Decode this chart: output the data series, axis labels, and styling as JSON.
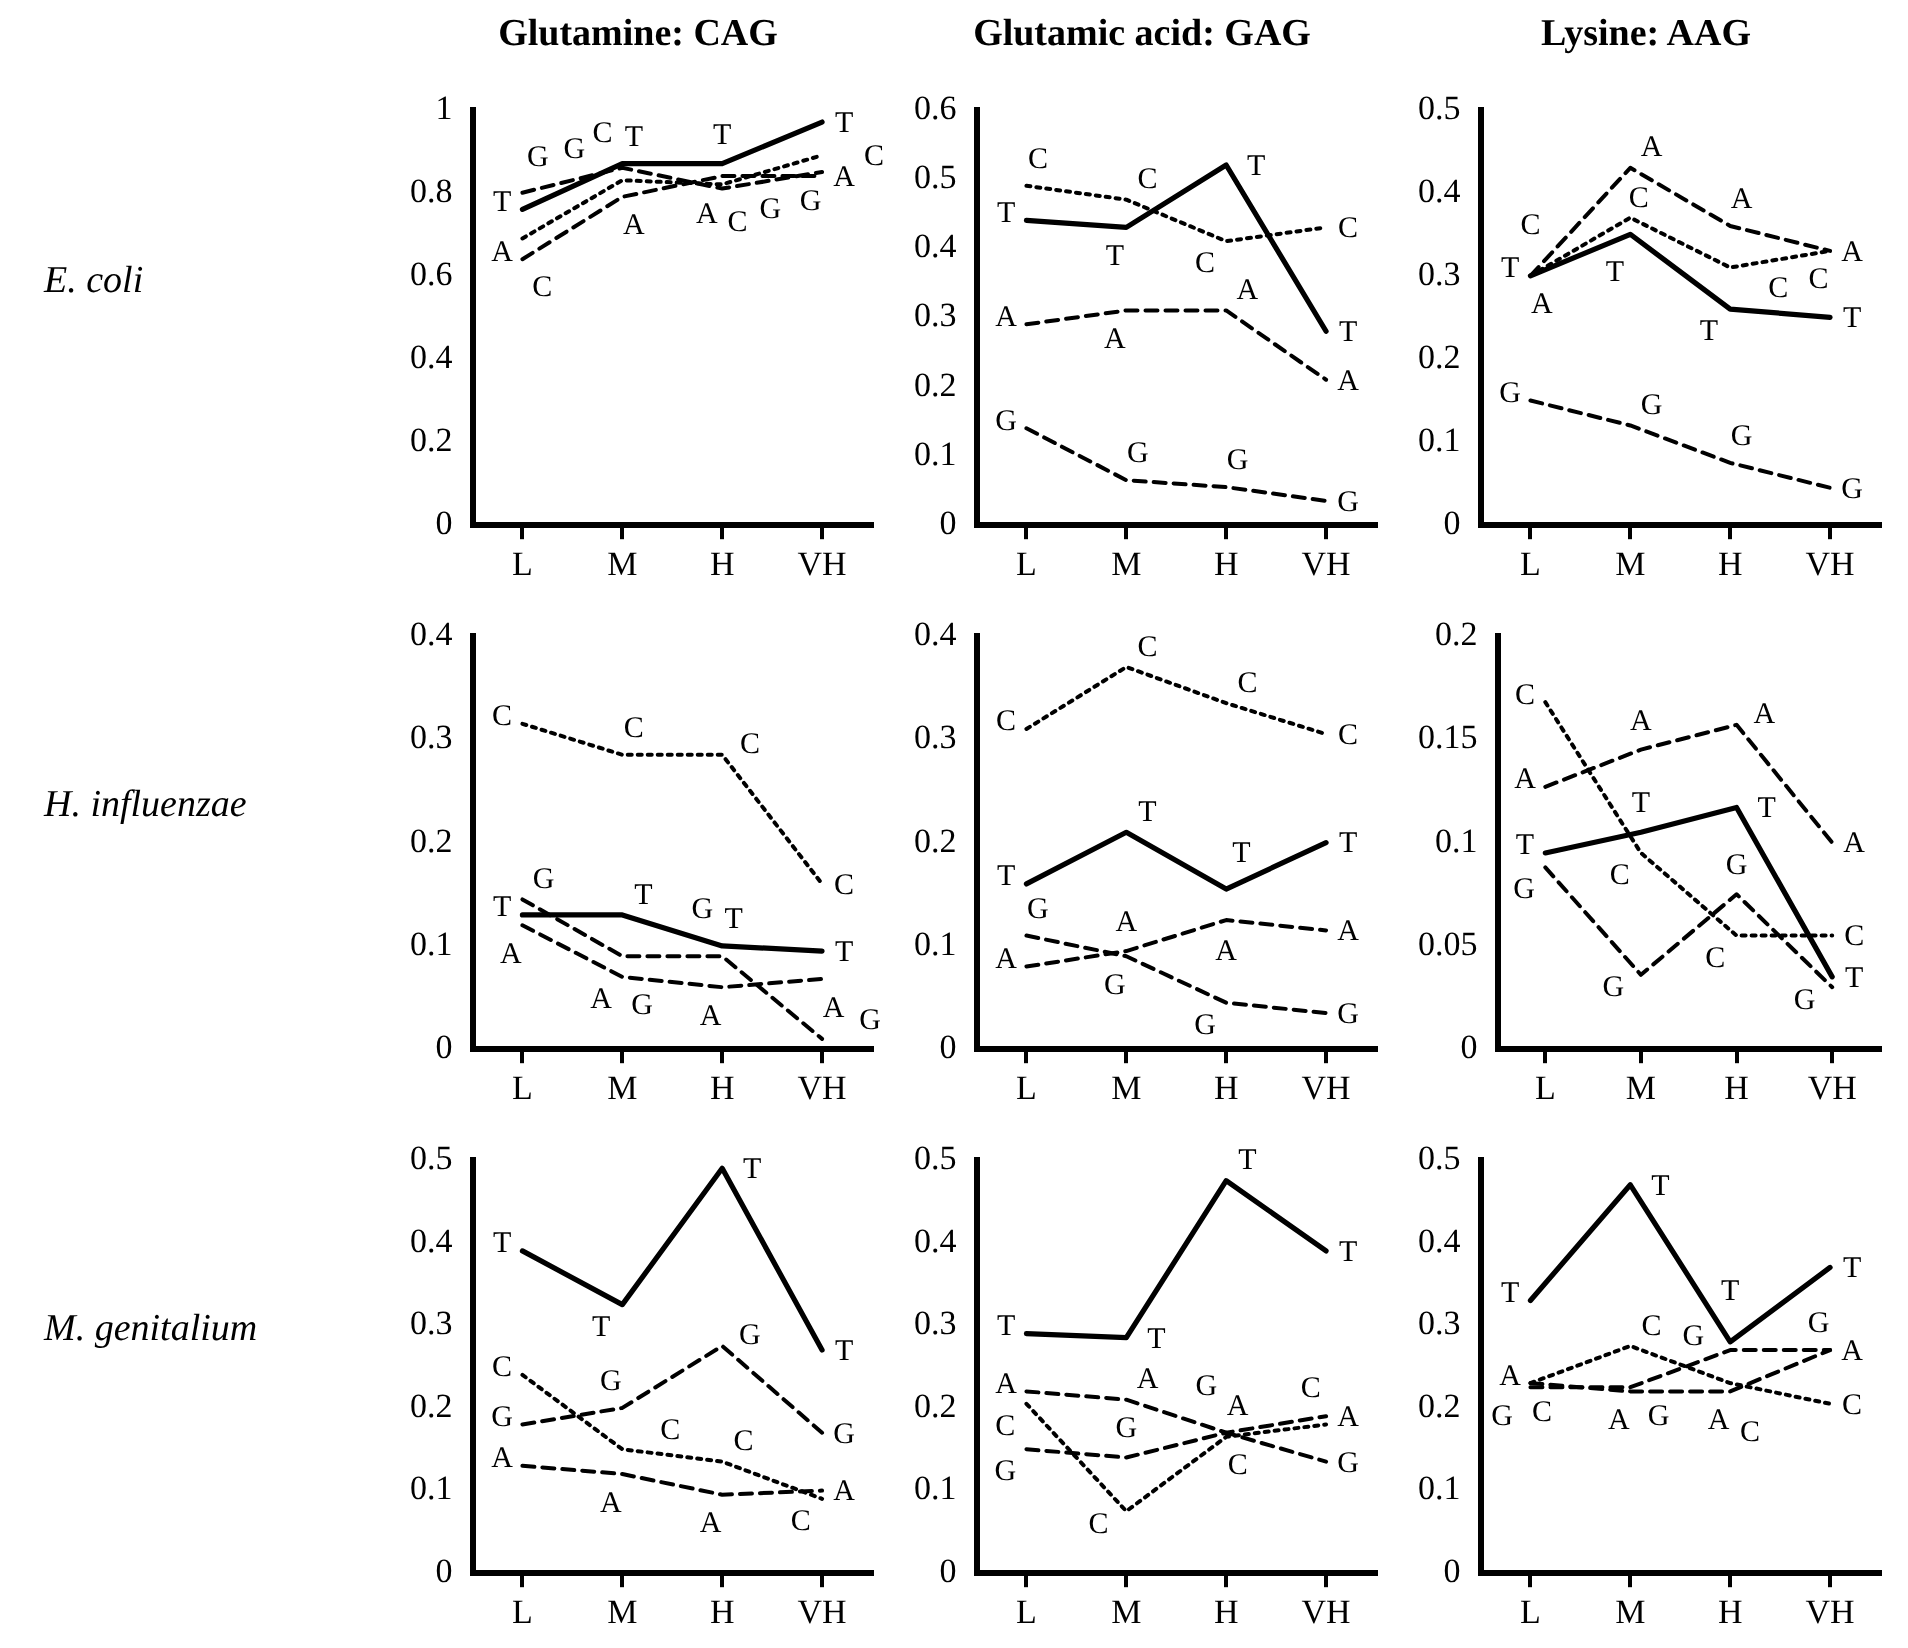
{
  "chart_data": [
    {
      "type": "line",
      "title": "Glutamine: CAG",
      "ylabel": "E. coli",
      "categories": [
        "L",
        "M",
        "H",
        "VH"
      ],
      "ylim": [
        0,
        1
      ],
      "yticks": [
        0,
        0.2,
        0.4,
        0.6,
        0.8,
        1
      ],
      "series": [
        {
          "name": "T",
          "color": "#000000",
          "line_style": "solid",
          "values": [
            0.76,
            0.87,
            0.87,
            0.97
          ]
        },
        {
          "name": "A",
          "color": "#000000",
          "line_style": "dashed",
          "values": [
            0.64,
            0.79,
            0.84,
            0.84
          ]
        },
        {
          "name": "C",
          "color": "#000000",
          "line_style": "dotted",
          "values": [
            0.69,
            0.83,
            0.82,
            0.89
          ]
        },
        {
          "name": "G",
          "color": "#000000",
          "line_style": "dashed",
          "values": [
            0.8,
            0.86,
            0.81,
            0.85
          ]
        }
      ]
    },
    {
      "type": "line",
      "title": "Glutamic acid: GAG",
      "categories": [
        "L",
        "M",
        "H",
        "VH"
      ],
      "ylim": [
        0,
        0.6
      ],
      "yticks": [
        0,
        0.1,
        0.2,
        0.3,
        0.4,
        0.5,
        0.6
      ],
      "series": [
        {
          "name": "T",
          "color": "#000000",
          "line_style": "solid",
          "values": [
            0.44,
            0.43,
            0.52,
            0.28
          ]
        },
        {
          "name": "A",
          "color": "#000000",
          "line_style": "dashed",
          "values": [
            0.29,
            0.31,
            0.31,
            0.21
          ]
        },
        {
          "name": "C",
          "color": "#000000",
          "line_style": "dotted",
          "values": [
            0.49,
            0.47,
            0.41,
            0.43
          ]
        },
        {
          "name": "G",
          "color": "#000000",
          "line_style": "dashed",
          "values": [
            0.14,
            0.065,
            0.055,
            0.035
          ]
        }
      ]
    },
    {
      "type": "line",
      "title": "Lysine: AAG",
      "categories": [
        "L",
        "M",
        "H",
        "VH"
      ],
      "ylim": [
        0,
        0.5
      ],
      "yticks": [
        0,
        0.1,
        0.2,
        0.3,
        0.4,
        0.5
      ],
      "series": [
        {
          "name": "T",
          "color": "#000000",
          "line_style": "solid",
          "values": [
            0.3,
            0.35,
            0.26,
            0.25
          ]
        },
        {
          "name": "A",
          "color": "#000000",
          "line_style": "dashed",
          "values": [
            0.3,
            0.43,
            0.36,
            0.33
          ]
        },
        {
          "name": "C",
          "color": "#000000",
          "line_style": "dotted",
          "values": [
            0.3,
            0.37,
            0.31,
            0.33
          ]
        },
        {
          "name": "G",
          "color": "#000000",
          "line_style": "dashed",
          "values": [
            0.15,
            0.12,
            0.075,
            0.045
          ]
        }
      ]
    },
    {
      "type": "line",
      "ylabel": "H. influenzae",
      "categories": [
        "L",
        "M",
        "H",
        "VH"
      ],
      "ylim": [
        0,
        0.4
      ],
      "yticks": [
        0,
        0.1,
        0.2,
        0.3,
        0.4
      ],
      "series": [
        {
          "name": "T",
          "color": "#000000",
          "line_style": "solid",
          "values": [
            0.13,
            0.13,
            0.1,
            0.095
          ]
        },
        {
          "name": "A",
          "color": "#000000",
          "line_style": "dashed",
          "values": [
            0.12,
            0.07,
            0.06,
            0.068
          ]
        },
        {
          "name": "C",
          "color": "#000000",
          "line_style": "dotted",
          "values": [
            0.315,
            0.285,
            0.285,
            0.16
          ]
        },
        {
          "name": "G",
          "color": "#000000",
          "line_style": "dashed",
          "values": [
            0.145,
            0.09,
            0.09,
            0.01
          ]
        }
      ]
    },
    {
      "type": "line",
      "categories": [
        "L",
        "M",
        "H",
        "VH"
      ],
      "ylim": [
        0,
        0.4
      ],
      "yticks": [
        0,
        0.1,
        0.2,
        0.3,
        0.4
      ],
      "series": [
        {
          "name": "T",
          "color": "#000000",
          "line_style": "solid",
          "values": [
            0.16,
            0.21,
            0.155,
            0.2
          ]
        },
        {
          "name": "A",
          "color": "#000000",
          "line_style": "dashed",
          "values": [
            0.08,
            0.095,
            0.125,
            0.115
          ]
        },
        {
          "name": "C",
          "color": "#000000",
          "line_style": "dotted",
          "values": [
            0.31,
            0.37,
            0.335,
            0.305
          ]
        },
        {
          "name": "G",
          "color": "#000000",
          "line_style": "dashed",
          "values": [
            0.11,
            0.09,
            0.045,
            0.035
          ]
        }
      ]
    },
    {
      "type": "line",
      "categories": [
        "L",
        "M",
        "H",
        "VH"
      ],
      "ylim": [
        0,
        0.2
      ],
      "yticks": [
        0,
        0.05,
        0.1,
        0.15,
        0.2
      ],
      "series": [
        {
          "name": "T",
          "color": "#000000",
          "line_style": "solid",
          "values": [
            0.095,
            0.105,
            0.117,
            0.035
          ]
        },
        {
          "name": "A",
          "color": "#000000",
          "line_style": "dashed",
          "values": [
            0.127,
            0.145,
            0.157,
            0.1
          ]
        },
        {
          "name": "C",
          "color": "#000000",
          "line_style": "dotted",
          "values": [
            0.168,
            0.095,
            0.055,
            0.055
          ]
        },
        {
          "name": "G",
          "color": "#000000",
          "line_style": "dashed",
          "values": [
            0.088,
            0.036,
            0.075,
            0.03
          ]
        }
      ]
    },
    {
      "type": "line",
      "ylabel": "M. genitalium",
      "categories": [
        "L",
        "M",
        "H",
        "VH"
      ],
      "ylim": [
        0,
        0.5
      ],
      "yticks": [
        0,
        0.1,
        0.2,
        0.3,
        0.4,
        0.5
      ],
      "series": [
        {
          "name": "T",
          "color": "#000000",
          "line_style": "solid",
          "values": [
            0.39,
            0.325,
            0.49,
            0.27
          ]
        },
        {
          "name": "A",
          "color": "#000000",
          "line_style": "dashed",
          "values": [
            0.13,
            0.12,
            0.095,
            0.1
          ]
        },
        {
          "name": "C",
          "color": "#000000",
          "line_style": "dotted",
          "values": [
            0.24,
            0.15,
            0.135,
            0.09
          ]
        },
        {
          "name": "G",
          "color": "#000000",
          "line_style": "dashed",
          "values": [
            0.18,
            0.2,
            0.275,
            0.17
          ]
        }
      ]
    },
    {
      "type": "line",
      "categories": [
        "L",
        "M",
        "H",
        "VH"
      ],
      "ylim": [
        0,
        0.5
      ],
      "yticks": [
        0,
        0.1,
        0.2,
        0.3,
        0.4,
        0.5
      ],
      "series": [
        {
          "name": "T",
          "color": "#000000",
          "line_style": "solid",
          "values": [
            0.29,
            0.285,
            0.475,
            0.39
          ]
        },
        {
          "name": "A",
          "color": "#000000",
          "line_style": "dashed",
          "values": [
            0.22,
            0.21,
            0.17,
            0.19
          ]
        },
        {
          "name": "C",
          "color": "#000000",
          "line_style": "dotted",
          "values": [
            0.205,
            0.075,
            0.165,
            0.18
          ]
        },
        {
          "name": "G",
          "color": "#000000",
          "line_style": "dashed",
          "values": [
            0.15,
            0.14,
            0.17,
            0.135
          ]
        }
      ]
    },
    {
      "type": "line",
      "categories": [
        "L",
        "M",
        "H",
        "VH"
      ],
      "ylim": [
        0,
        0.5
      ],
      "yticks": [
        0,
        0.1,
        0.2,
        0.3,
        0.4,
        0.5
      ],
      "series": [
        {
          "name": "T",
          "color": "#000000",
          "line_style": "solid",
          "values": [
            0.33,
            0.47,
            0.28,
            0.37
          ]
        },
        {
          "name": "A",
          "color": "#000000",
          "line_style": "dashed",
          "values": [
            0.23,
            0.22,
            0.22,
            0.27
          ]
        },
        {
          "name": "C",
          "color": "#000000",
          "line_style": "dotted",
          "values": [
            0.23,
            0.275,
            0.23,
            0.205
          ]
        },
        {
          "name": "G",
          "color": "#000000",
          "line_style": "dashed",
          "values": [
            0.225,
            0.225,
            0.27,
            0.27
          ]
        }
      ]
    }
  ]
}
